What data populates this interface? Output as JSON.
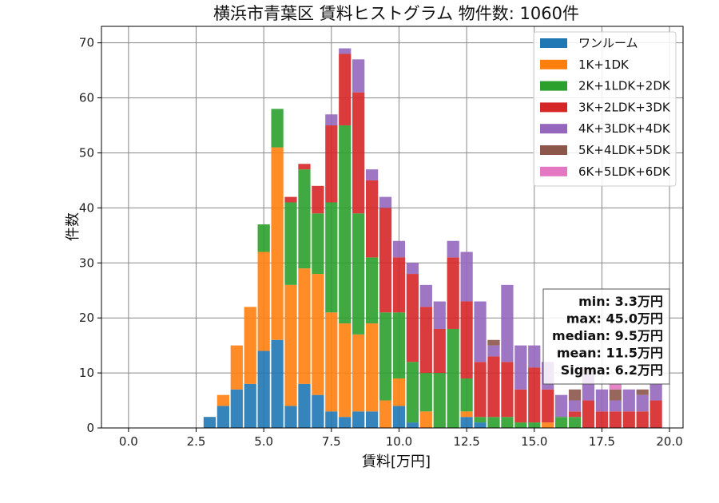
{
  "chart_data": {
    "type": "bar",
    "stacked": true,
    "title": "横浜市青葉区 賃料ヒストグラム 物件数: 1060件",
    "xlabel": "賃料[万円]",
    "ylabel": "件数",
    "xlim": [
      -1,
      20.5
    ],
    "ylim": [
      0,
      73
    ],
    "xticks": [
      0,
      2.5,
      5,
      7.5,
      10,
      12.5,
      15,
      17.5,
      20
    ],
    "xtick_labels": [
      "0.0",
      "2.5",
      "5.0",
      "7.5",
      "10.0",
      "12.5",
      "15.0",
      "17.5",
      "20.0"
    ],
    "yticks": [
      0,
      10,
      20,
      30,
      40,
      50,
      60,
      70
    ],
    "ytick_labels": [
      "0",
      "10",
      "20",
      "30",
      "40",
      "50",
      "60",
      "70"
    ],
    "grid": true,
    "legend_position": "top-right",
    "bin_width": 0.5,
    "x": [
      3.0,
      3.5,
      4.0,
      4.5,
      5.0,
      5.5,
      6.0,
      6.5,
      7.0,
      7.5,
      8.0,
      8.5,
      9.0,
      9.5,
      10.0,
      10.5,
      11.0,
      11.5,
      12.0,
      12.5,
      13.0,
      13.5,
      14.0,
      14.5,
      15.0,
      15.5,
      16.0,
      16.5,
      17.0,
      17.5,
      18.0,
      18.5,
      19.0,
      19.5
    ],
    "series": [
      {
        "name": "ワンルーム",
        "color": "#1f77b4",
        "values": [
          2,
          4,
          7,
          8,
          14,
          16,
          4,
          8,
          6,
          3,
          2,
          3,
          3,
          0,
          4,
          1,
          0,
          0,
          0,
          2,
          1,
          0,
          0,
          0,
          0,
          0,
          0,
          0,
          0,
          0,
          0,
          0,
          0,
          0
        ]
      },
      {
        "name": "1K+1DK",
        "color": "#ff7f0e",
        "values": [
          0,
          2,
          8,
          14,
          18,
          35,
          22,
          21,
          22,
          18,
          17,
          14,
          16,
          5,
          5,
          0,
          3,
          0,
          0,
          1,
          0,
          0,
          0,
          0,
          0,
          1,
          0,
          0,
          0,
          0,
          0,
          0,
          0,
          0
        ]
      },
      {
        "name": "2K+1LDK+2DK",
        "color": "#2ca02c",
        "values": [
          0,
          0,
          0,
          0,
          5,
          7,
          15,
          18,
          11,
          20,
          36,
          22,
          12,
          16,
          12,
          11,
          7,
          10,
          18,
          6,
          1,
          2,
          2,
          1,
          1,
          0,
          2,
          2,
          0,
          0,
          0,
          0,
          0,
          0
        ]
      },
      {
        "name": "3K+2LDK+3DK",
        "color": "#d62728",
        "values": [
          0,
          0,
          0,
          0,
          0,
          0,
          1,
          1,
          5,
          14,
          13,
          22,
          14,
          19,
          10,
          16,
          12,
          8,
          13,
          14,
          10,
          11,
          10,
          6,
          10,
          6,
          0,
          1,
          5,
          3,
          3,
          3,
          3,
          5
        ]
      },
      {
        "name": "4K+3LDK+4DK",
        "color": "#9467bd",
        "values": [
          0,
          0,
          0,
          0,
          0,
          0,
          0,
          0,
          0,
          2,
          1,
          6,
          2,
          2,
          3,
          2,
          4,
          5,
          3,
          9,
          11,
          2,
          14,
          8,
          4,
          5,
          4,
          2,
          5,
          4,
          2,
          4,
          3,
          3
        ]
      },
      {
        "name": "5K+4LDK+5DK",
        "color": "#8c564b",
        "values": [
          0,
          0,
          0,
          0,
          0,
          0,
          0,
          0,
          0,
          0,
          0,
          0,
          0,
          0,
          0,
          0,
          0,
          0,
          0,
          0,
          0,
          1,
          0,
          0,
          0,
          0,
          0,
          2,
          1,
          0,
          2,
          0,
          1,
          0
        ]
      },
      {
        "name": "6K+5LDK+6DK",
        "color": "#e377c2",
        "values": [
          0,
          0,
          0,
          0,
          0,
          0,
          0,
          0,
          0,
          0,
          0,
          0,
          0,
          0,
          0,
          0,
          0,
          0,
          0,
          0,
          0,
          0,
          0,
          0,
          0,
          0,
          0,
          0,
          0,
          0,
          1,
          0,
          0,
          0
        ]
      }
    ],
    "stats": [
      "min: 3.3万円",
      "max: 45.0万円",
      "median: 9.5万円",
      "mean: 11.5万円",
      "Sigma: 6.2万円"
    ]
  }
}
